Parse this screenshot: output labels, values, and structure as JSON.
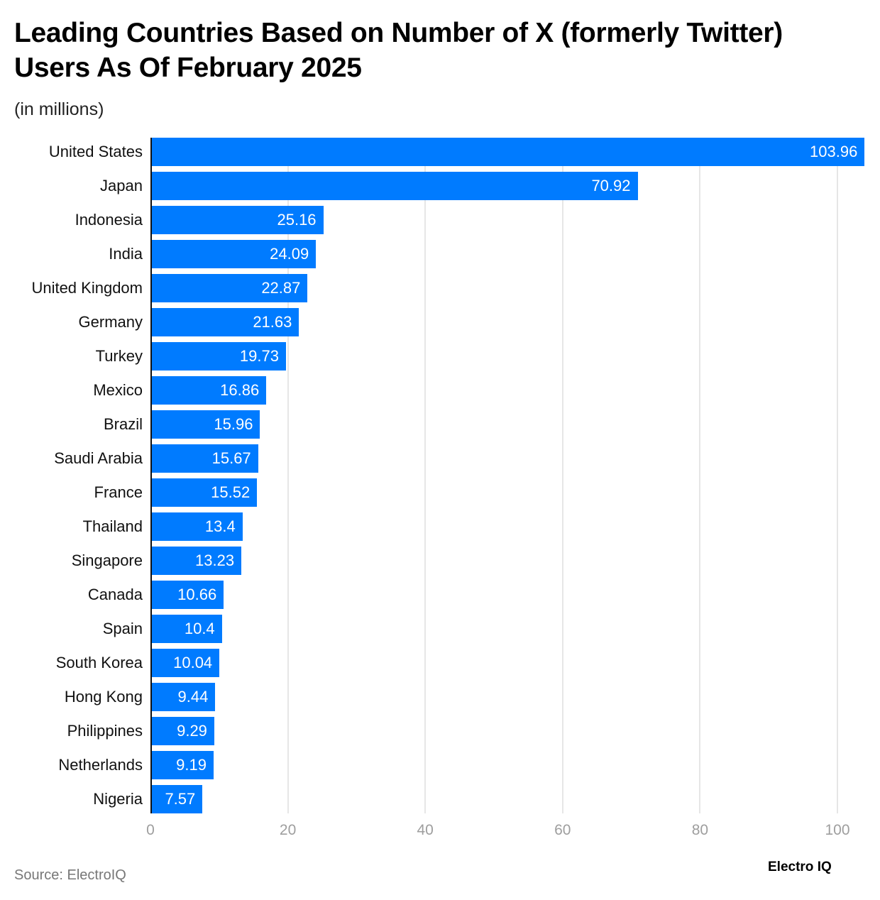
{
  "header": {
    "title": "Leading Countries Based on Number of X (formerly Twitter) Users As Of February 2025",
    "subtitle": "(in millions)"
  },
  "footer": {
    "source": "Source: ElectroIQ",
    "logo": "Electro IQ"
  },
  "colors": {
    "bar": "#007bff",
    "grid": "#e6e6e6",
    "tick_text": "#9e9e9e"
  },
  "chart_data": {
    "type": "bar",
    "orientation": "horizontal",
    "title": "Leading Countries Based on Number of X (formerly Twitter) Users As Of February 2025",
    "subtitle": "(in millions)",
    "xlabel": "",
    "ylabel": "",
    "xlim": [
      0,
      104
    ],
    "x_ticks": [
      0,
      20,
      40,
      60,
      80,
      100
    ],
    "grid": true,
    "legend": null,
    "categories": [
      "United States",
      "Japan",
      "Indonesia",
      "India",
      "United Kingdom",
      "Germany",
      "Turkey",
      "Mexico",
      "Brazil",
      "Saudi Arabia",
      "France",
      "Thailand",
      "Singapore",
      "Canada",
      "Spain",
      "South Korea",
      "Hong Kong",
      "Philippines",
      "Netherlands",
      "Nigeria"
    ],
    "values": [
      103.96,
      70.92,
      25.16,
      24.09,
      22.87,
      21.63,
      19.73,
      16.86,
      15.96,
      15.67,
      15.52,
      13.4,
      13.23,
      10.66,
      10.4,
      10.04,
      9.44,
      9.29,
      9.19,
      7.57
    ],
    "value_labels": [
      "103.96",
      "70.92",
      "25.16",
      "24.09",
      "22.87",
      "21.63",
      "19.73",
      "16.86",
      "15.96",
      "15.67",
      "15.52",
      "13.4",
      "13.23",
      "10.66",
      "10.4",
      "10.04",
      "9.44",
      "9.29",
      "9.19",
      "7.57"
    ],
    "source": "Source: ElectroIQ"
  }
}
